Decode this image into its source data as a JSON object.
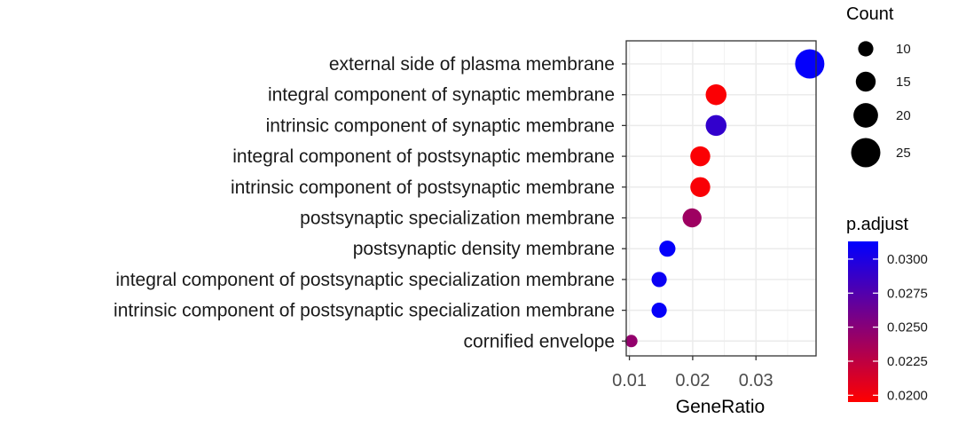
{
  "chart_data": {
    "type": "scatter",
    "xlabel": "GeneRatio",
    "ylabel": "",
    "xlim": [
      0.0095,
      0.0395
    ],
    "x_ticks": [
      0.01,
      0.02,
      0.03
    ],
    "x_tick_labels": [
      "0.01",
      "0.02",
      "0.03"
    ],
    "grid": true,
    "categories": [
      "external side of plasma membrane",
      "integral component of synaptic membrane",
      "intrinsic component of synaptic membrane",
      "integral component of postsynaptic membrane",
      "intrinsic component of postsynaptic membrane",
      "postsynaptic specialization membrane",
      "postsynaptic density membrane",
      "integral component of postsynaptic specialization membrane",
      "intrinsic component of postsynaptic specialization membrane",
      "cornified envelope"
    ],
    "points": [
      {
        "category": "external side of plasma membrane",
        "gene_ratio": 0.0385,
        "count": 25,
        "p_adjust": 0.0311
      },
      {
        "category": "integral component of synaptic membrane",
        "gene_ratio": 0.0237,
        "count": 16,
        "p_adjust": 0.0197
      },
      {
        "category": "intrinsic component of synaptic membrane",
        "gene_ratio": 0.0237,
        "count": 16,
        "p_adjust": 0.029
      },
      {
        "category": "integral component of postsynaptic membrane",
        "gene_ratio": 0.0212,
        "count": 15,
        "p_adjust": 0.0197
      },
      {
        "category": "intrinsic component of postsynaptic membrane",
        "gene_ratio": 0.0212,
        "count": 15,
        "p_adjust": 0.0198
      },
      {
        "category": "postsynaptic specialization membrane",
        "gene_ratio": 0.0199,
        "count": 14,
        "p_adjust": 0.024
      },
      {
        "category": "postsynaptic density membrane",
        "gene_ratio": 0.016,
        "count": 11,
        "p_adjust": 0.0311
      },
      {
        "category": "integral component of postsynaptic specialization membrane",
        "gene_ratio": 0.0147,
        "count": 10,
        "p_adjust": 0.0308
      },
      {
        "category": "intrinsic component of postsynaptic specialization membrane",
        "gene_ratio": 0.0147,
        "count": 10,
        "p_adjust": 0.031
      },
      {
        "category": "cornified envelope",
        "gene_ratio": 0.0103,
        "count": 7,
        "p_adjust": 0.0245
      }
    ],
    "size_legend": {
      "title": "Count",
      "values": [
        10,
        15,
        20,
        25
      ],
      "labels": [
        "10",
        "15",
        "20",
        "25"
      ]
    },
    "color_legend": {
      "title": "p.adjust",
      "range": [
        0.0195,
        0.0313
      ],
      "ticks": [
        0.03,
        0.0275,
        0.025,
        0.0225,
        0.02
      ],
      "tick_labels": [
        "0.0300",
        "0.0275",
        "0.0250",
        "0.0225",
        "0.0200"
      ],
      "color_low": "#ff0000",
      "color_high": "#0000ff"
    }
  }
}
